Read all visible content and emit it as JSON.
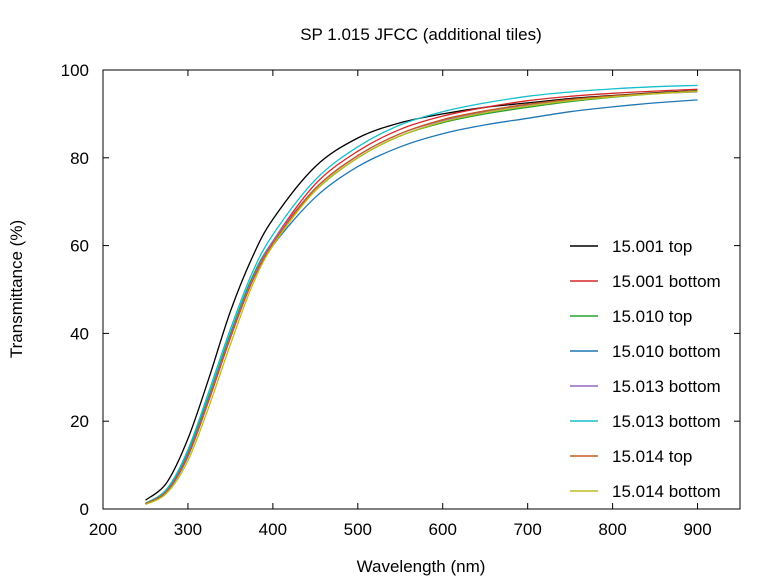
{
  "chart_data": {
    "type": "line",
    "title": "SP 1.015 JFCC (additional tiles)",
    "xlabel": "Wavelength (nm)",
    "ylabel": "Transmittance (%)",
    "xlim": [
      200,
      950
    ],
    "ylim": [
      0,
      100
    ],
    "xticks": [
      200,
      300,
      400,
      500,
      600,
      700,
      800,
      900
    ],
    "yticks": [
      0,
      20,
      40,
      60,
      80,
      100
    ],
    "grid": false,
    "legend_position": "right",
    "series": [
      {
        "name": "15.001 top",
        "color": "#000000",
        "x": [
          250,
          275,
          300,
          325,
          350,
          375,
          400,
          450,
          500,
          550,
          600,
          650,
          700,
          750,
          800,
          850,
          900
        ],
        "y": [
          2,
          6,
          16,
          30,
          45,
          57,
          66,
          78,
          84.5,
          88,
          90,
          91.5,
          92.5,
          93.5,
          94.2,
          94.8,
          95.3
        ]
      },
      {
        "name": "15.001 bottom",
        "color": "#d62728",
        "x": [
          250,
          275,
          300,
          325,
          350,
          375,
          400,
          450,
          500,
          550,
          600,
          650,
          700,
          750,
          800,
          850,
          900
        ],
        "y": [
          1.2,
          4,
          12,
          25,
          39,
          52,
          61,
          74,
          81.5,
          86.5,
          89.5,
          91.5,
          93,
          94,
          94.7,
          95.2,
          95.6
        ]
      },
      {
        "name": "15.010 top",
        "color": "#2ca02c",
        "x": [
          250,
          275,
          300,
          325,
          350,
          375,
          400,
          450,
          500,
          550,
          600,
          650,
          700,
          750,
          800,
          850,
          900
        ],
        "y": [
          1.3,
          4.5,
          13,
          26,
          40,
          52.5,
          61,
          72.5,
          80,
          85,
          88,
          90,
          91.5,
          92.8,
          93.8,
          94.6,
          95.3
        ]
      },
      {
        "name": "15.010 bottom",
        "color": "#1f77b4",
        "x": [
          250,
          275,
          300,
          325,
          350,
          375,
          400,
          450,
          500,
          550,
          600,
          650,
          700,
          750,
          800,
          850,
          900
        ],
        "y": [
          1.1,
          4,
          12,
          25,
          39,
          51.5,
          60,
          71,
          78,
          82.5,
          85.5,
          87.5,
          89,
          90.5,
          91.6,
          92.5,
          93.2
        ]
      },
      {
        "name": "15.013 bottom",
        "color": "#9467bd",
        "x": [
          250,
          275,
          300,
          325,
          350,
          375,
          400,
          450,
          500,
          550,
          600,
          650,
          700,
          750,
          800,
          850,
          900
        ],
        "y": [
          1.2,
          4.2,
          12.5,
          25.5,
          39.5,
          52,
          61,
          73,
          80.5,
          85.5,
          88.5,
          90.5,
          92,
          93.2,
          94,
          94.6,
          95
        ]
      },
      {
        "name": "15.013 bottom",
        "color": "#17becf",
        "x": [
          250,
          275,
          300,
          325,
          350,
          375,
          400,
          450,
          500,
          550,
          600,
          650,
          700,
          750,
          800,
          850,
          900
        ],
        "y": [
          1.3,
          4.5,
          13.5,
          27,
          41,
          53.5,
          62.5,
          75,
          82.5,
          87.5,
          90.5,
          92.5,
          94,
          95,
          95.7,
          96.2,
          96.5
        ]
      },
      {
        "name": "15.014 top",
        "color": "#c85a1e",
        "x": [
          250,
          275,
          300,
          325,
          350,
          375,
          400,
          450,
          500,
          550,
          600,
          650,
          700,
          750,
          800,
          850,
          900
        ],
        "y": [
          1.2,
          4.1,
          12.2,
          25,
          39,
          51.5,
          60.5,
          73,
          80.5,
          85.5,
          88.7,
          90.7,
          92.2,
          93.3,
          94.1,
          94.7,
          95.2
        ]
      },
      {
        "name": "15.014 bottom",
        "color": "#bcbd22",
        "x": [
          250,
          275,
          300,
          325,
          350,
          375,
          400,
          450,
          500,
          550,
          600,
          650,
          700,
          750,
          800,
          850,
          900
        ],
        "y": [
          1.0,
          3.6,
          11,
          23.5,
          37.5,
          50.5,
          60,
          72.5,
          80,
          85,
          88.2,
          90.3,
          91.8,
          93,
          93.9,
          94.6,
          95.1
        ]
      }
    ]
  }
}
